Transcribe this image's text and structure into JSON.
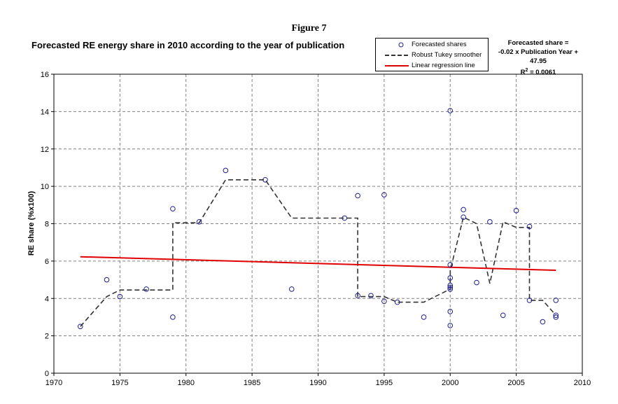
{
  "figure_label": "Figure 7",
  "equation": {
    "line1": "Forecasted share =",
    "line2": "-0.02 x Publication Year + 47.95",
    "line3_prefix": "R",
    "line3_sup": "2",
    "line3_suffix": " = 0.0061"
  },
  "legend": {
    "items": [
      {
        "label": "Forecasted shares",
        "symbol": "circle",
        "color": "#1f1f8f"
      },
      {
        "label": "Robust Tukey smoother",
        "symbol": "dashed-line",
        "color": "#333333"
      },
      {
        "label": "Linear regression line",
        "symbol": "solid-line",
        "color": "#e00000"
      }
    ]
  },
  "chart_data": {
    "type": "scatter",
    "title": "Forecasted RE energy share in 2010 according to the year of publication",
    "xlabel": "",
    "ylabel": "RE share (%x100)",
    "xlim": [
      1970,
      2010
    ],
    "ylim": [
      0,
      16
    ],
    "x_ticks": [
      "1970",
      "1975",
      "1980",
      "1985",
      "1990",
      "1995",
      "2000",
      "2005",
      "2010"
    ],
    "y_ticks": [
      "0",
      "2",
      "4",
      "6",
      "8",
      "10",
      "12",
      "14",
      "16"
    ],
    "grid": true,
    "legend_position": "top-right",
    "colors": {
      "points": "#1f1f8f",
      "smoother": "#333333",
      "regression": "#e00000",
      "grid": "#808080"
    },
    "series": [
      {
        "name": "Forecasted shares",
        "type": "scatter",
        "x": [
          1972,
          1974,
          1975,
          1977,
          1979,
          1979,
          1981,
          1983,
          1986,
          1988,
          1992,
          1993,
          1993,
          1994,
          1995,
          1995,
          1996,
          1998,
          2000,
          2000,
          2000,
          2000,
          2000,
          2000,
          2000,
          2000,
          2001,
          2001,
          2002,
          2003,
          2004,
          2005,
          2006,
          2006,
          2007,
          2008,
          2008,
          2008
        ],
        "y": [
          2.5,
          5.0,
          4.1,
          4.5,
          8.8,
          3.0,
          8.1,
          10.85,
          10.35,
          4.5,
          8.3,
          9.5,
          4.15,
          4.15,
          9.55,
          3.85,
          3.8,
          3.0,
          14.05,
          5.8,
          5.1,
          4.6,
          4.5,
          3.3,
          2.55,
          4.7,
          8.75,
          8.35,
          4.85,
          8.1,
          3.1,
          8.7,
          7.85,
          3.9,
          2.75,
          3.9,
          3.1,
          3.0
        ]
      },
      {
        "name": "Robust Tukey smoother",
        "type": "line",
        "x": [
          1972,
          1974,
          1975,
          1979,
          1979,
          1981,
          1983,
          1986,
          1988,
          1993,
          1993,
          1995,
          1996,
          1998,
          2000,
          2000,
          2001,
          2002,
          2003,
          2004,
          2005,
          2006,
          2006,
          2007,
          2008
        ],
        "y": [
          2.5,
          4.1,
          4.45,
          4.45,
          8.05,
          8.05,
          10.35,
          10.35,
          8.3,
          8.3,
          4.1,
          4.1,
          3.8,
          3.8,
          4.5,
          5.5,
          8.35,
          8.0,
          4.8,
          8.1,
          7.8,
          7.8,
          3.9,
          3.9,
          3.1
        ]
      },
      {
        "name": "Linear regression line",
        "type": "line",
        "x": [
          1972,
          2008
        ],
        "y": [
          6.23,
          5.51
        ]
      }
    ]
  }
}
